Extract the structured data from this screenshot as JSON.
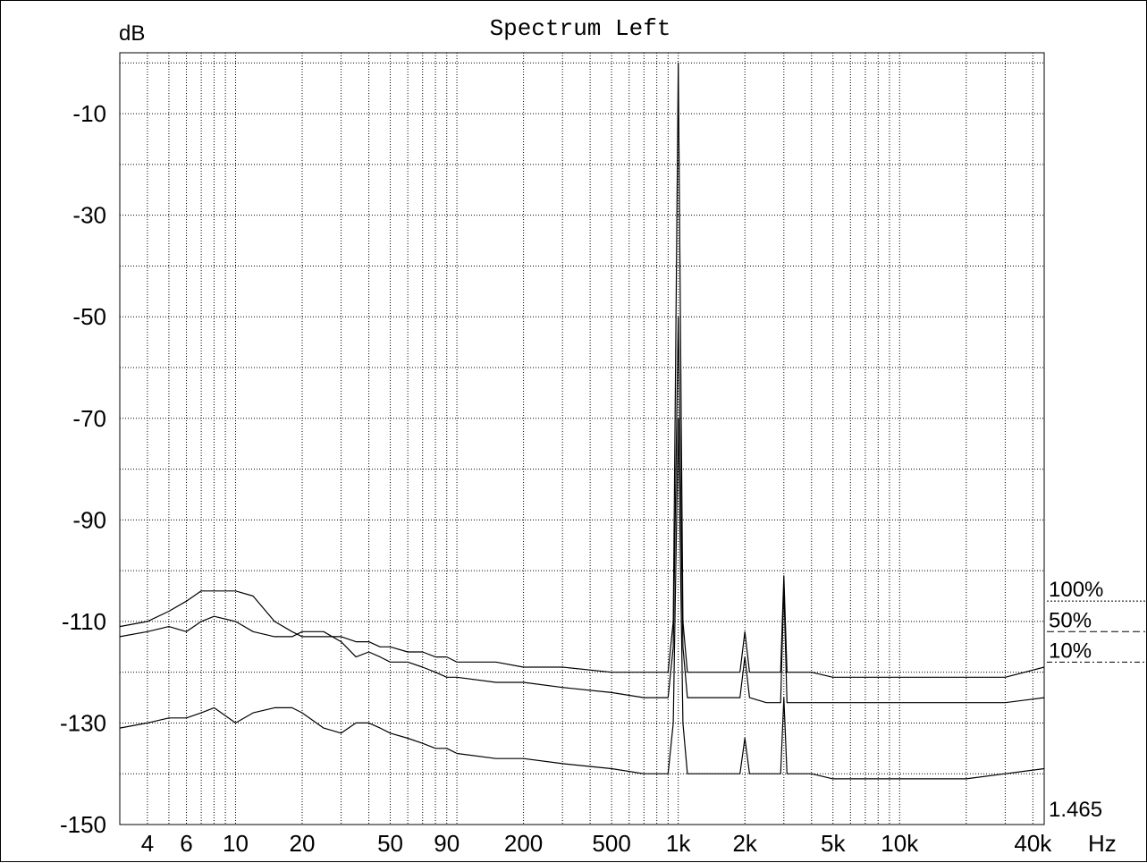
{
  "chart_data": {
    "type": "line",
    "title": "Spectrum Left",
    "ylabel": "dB",
    "xlabel": "Hz",
    "x_scale": "log",
    "xlim": [
      3,
      45000
    ],
    "ylim": [
      -150,
      2
    ],
    "yticks": [
      -10,
      -30,
      -50,
      -70,
      -90,
      -110,
      -130,
      -150
    ],
    "xticks": [
      {
        "value": 4,
        "label": "4"
      },
      {
        "value": 6,
        "label": "6"
      },
      {
        "value": 10,
        "label": "10"
      },
      {
        "value": 20,
        "label": "20"
      },
      {
        "value": 50,
        "label": "50"
      },
      {
        "value": 90,
        "label": "90"
      },
      {
        "value": 200,
        "label": "200"
      },
      {
        "value": 500,
        "label": "500"
      },
      {
        "value": 1000,
        "label": "1k"
      },
      {
        "value": 2000,
        "label": "2k"
      },
      {
        "value": 5000,
        "label": "5k"
      },
      {
        "value": 10000,
        "label": "10k"
      },
      {
        "value": 40000,
        "label": "40k"
      }
    ],
    "grid": true,
    "legend": [
      {
        "label": "100%",
        "level": -106
      },
      {
        "label": "50%",
        "level": -112
      },
      {
        "label": "10%",
        "level": -118
      }
    ],
    "readout": "1.465",
    "series": [
      {
        "x": [
          3,
          4,
          5,
          6,
          7,
          8,
          10,
          12,
          15,
          18,
          20,
          25,
          30,
          35,
          40,
          45,
          50,
          60,
          70,
          80,
          90,
          100,
          150,
          200,
          300,
          500,
          700,
          900,
          950,
          1000,
          1050,
          1100,
          1500,
          1900,
          2000,
          2100,
          2500,
          2900,
          3000,
          3100,
          4000,
          5000,
          7000,
          10000,
          15000,
          20000,
          30000,
          45000
        ],
        "y": [
          -111,
          -110,
          -108,
          -106,
          -104,
          -104,
          -104,
          -105,
          -110,
          -112,
          -113,
          -113,
          -113,
          -114,
          -114,
          -115,
          -115,
          -116,
          -116,
          -117,
          -117,
          -118,
          -118,
          -119,
          -119,
          -120,
          -120,
          -120,
          -110,
          0,
          -110,
          -120,
          -120,
          -120,
          -112,
          -120,
          -120,
          -120,
          -101,
          -120,
          -120,
          -121,
          -121,
          -121,
          -121,
          -121,
          -121,
          -119
        ]
      },
      {
        "x": [
          3,
          4,
          5,
          6,
          7,
          8,
          10,
          12,
          15,
          18,
          20,
          25,
          30,
          35,
          40,
          45,
          50,
          60,
          70,
          80,
          90,
          100,
          150,
          200,
          300,
          500,
          700,
          900,
          950,
          1000,
          1050,
          1100,
          1500,
          1900,
          2000,
          2100,
          2500,
          2900,
          3000,
          3100,
          4000,
          5000,
          7000,
          10000,
          15000,
          20000,
          30000,
          45000
        ],
        "y": [
          -113,
          -112,
          -111,
          -112,
          -110,
          -109,
          -110,
          -112,
          -113,
          -113,
          -112,
          -112,
          -114,
          -117,
          -116,
          -117,
          -118,
          -118,
          -119,
          -120,
          -121,
          -121,
          -122,
          -122,
          -123,
          -124,
          -125,
          -125,
          -115,
          -50,
          -115,
          -125,
          -125,
          -125,
          -117,
          -125,
          -126,
          -126,
          -103,
          -126,
          -126,
          -126,
          -126,
          -126,
          -126,
          -126,
          -126,
          -125
        ]
      },
      {
        "x": [
          3,
          4,
          5,
          6,
          7,
          8,
          10,
          12,
          15,
          18,
          20,
          25,
          30,
          35,
          40,
          45,
          50,
          60,
          70,
          80,
          90,
          100,
          150,
          200,
          300,
          500,
          700,
          900,
          950,
          1000,
          1050,
          1100,
          1500,
          1900,
          2000,
          2100,
          2500,
          2900,
          3000,
          3100,
          4000,
          5000,
          7000,
          10000,
          15000,
          20000,
          30000,
          45000
        ],
        "y": [
          -131,
          -130,
          -129,
          -129,
          -128,
          -127,
          -130,
          -128,
          -127,
          -127,
          -128,
          -131,
          -132,
          -130,
          -130,
          -131,
          -132,
          -133,
          -134,
          -135,
          -135,
          -136,
          -137,
          -137,
          -138,
          -139,
          -140,
          -140,
          -130,
          -70,
          -130,
          -140,
          -140,
          -140,
          -133,
          -140,
          -140,
          -140,
          -125,
          -140,
          -140,
          -141,
          -141,
          -141,
          -141,
          -141,
          -140,
          -139
        ]
      }
    ]
  }
}
